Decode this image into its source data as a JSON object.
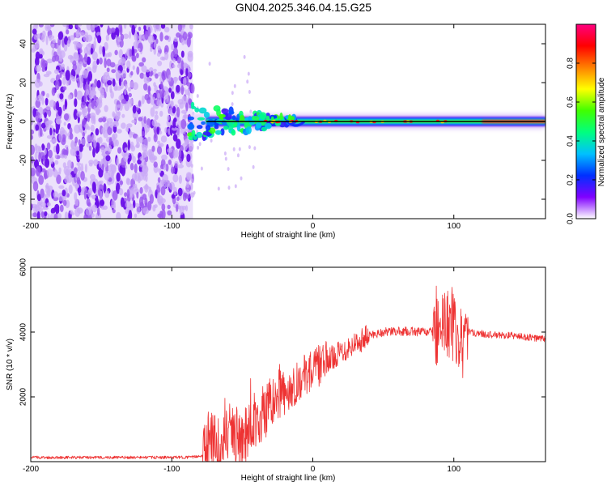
{
  "title": "GN04.2025.346.04.15.G25",
  "chart_data": [
    {
      "type": "heatmap",
      "xlabel": "Height of straight line (km)",
      "ylabel": "Frequency (Hz)",
      "xlim": [
        -200,
        165
      ],
      "ylim": [
        -50,
        50
      ],
      "xticks": [
        -200,
        -100,
        0,
        100
      ],
      "yticks": [
        -40,
        -20,
        0,
        20,
        40
      ],
      "noise_region_x": [
        -200,
        -85
      ],
      "carrier_region_x": [
        -87,
        165
      ],
      "colorbar": {
        "label": "Normalized spectral amplitude",
        "range": [
          0,
          1
        ],
        "ticks": [
          "0.0",
          "0.2",
          "0.4",
          "0.6",
          "0.8"
        ],
        "colormap": [
          "#ffffff",
          "#8000ff",
          "#0030ff",
          "#00c0ff",
          "#00ff80",
          "#40ff00",
          "#ffff00",
          "#ff8000",
          "#ff0000",
          "#ff0080"
        ]
      }
    },
    {
      "type": "line",
      "xlabel": "Height of straight line (km)",
      "ylabel": "SNR (10 * v/v)",
      "xlim": [
        -200,
        165
      ],
      "ylim": [
        0,
        6000
      ],
      "xticks": [
        -200,
        -100,
        0,
        100
      ],
      "yticks": [
        2000,
        4000,
        6000
      ],
      "series": [
        {
          "name": "SNR",
          "color": "#ee3333",
          "x": [
            -200,
            -180,
            -160,
            -140,
            -120,
            -100,
            -85,
            -77,
            -73,
            -65,
            -58,
            -50,
            -42,
            -35,
            -25,
            -15,
            -5,
            0,
            10,
            20,
            30,
            40,
            50,
            60,
            70,
            80,
            90,
            95,
            100,
            105,
            110,
            120,
            130,
            140,
            150,
            160,
            165
          ],
          "values": [
            130,
            130,
            130,
            130,
            130,
            130,
            140,
            200,
            800,
            400,
            1000,
            600,
            1300,
            1500,
            1900,
            2300,
            2700,
            2850,
            3100,
            3400,
            3650,
            3900,
            4000,
            4020,
            4020,
            4000,
            4000,
            4300,
            4100,
            3900,
            4000,
            3950,
            3900,
            3900,
            3850,
            3800,
            3800
          ]
        }
      ]
    }
  ]
}
